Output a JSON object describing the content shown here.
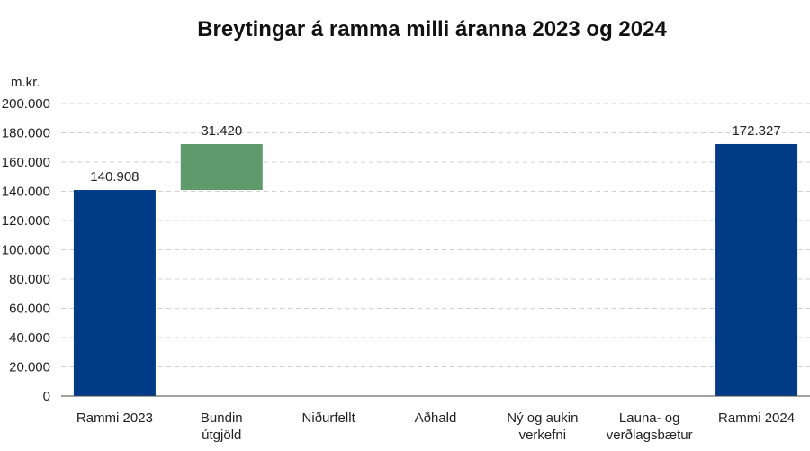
{
  "chart_data": {
    "type": "bar",
    "subtype": "waterfall",
    "title": "Breytingar á ramma milli áranna 2023 og 2024",
    "unit_label": "m.kr.",
    "ylim": [
      0,
      200000
    ],
    "yticks": [
      0,
      20000,
      40000,
      60000,
      80000,
      100000,
      120000,
      140000,
      160000,
      180000,
      200000
    ],
    "ytick_labels": [
      "0",
      "20.000",
      "40.000",
      "60.000",
      "80.000",
      "100.000",
      "120.000",
      "140.000",
      "160.000",
      "180.000",
      "200.000"
    ],
    "grid": true,
    "categories": [
      [
        "Rammi 2023"
      ],
      [
        "Bundin",
        "útgjöld"
      ],
      [
        "Niðurfellt"
      ],
      [
        "Aðhald"
      ],
      [
        "Ný og aukin",
        "verkefni"
      ],
      [
        "Launa- og",
        "verðlagsbætur"
      ],
      [
        "Rammi 2024"
      ]
    ],
    "bars": [
      {
        "kind": "total",
        "start": 0,
        "end": 140908,
        "label": "140.908",
        "color": "#003b87"
      },
      {
        "kind": "delta",
        "start": 140908,
        "end": 172328,
        "label": "31.420",
        "color": "#5e9a6c"
      },
      {
        "kind": "delta",
        "start": 172328,
        "end": 172328,
        "label": "",
        "color": "#5e9a6c"
      },
      {
        "kind": "delta",
        "start": 172328,
        "end": 172328,
        "label": "",
        "color": "#5e9a6c"
      },
      {
        "kind": "delta",
        "start": 172328,
        "end": 172328,
        "label": "",
        "color": "#5e9a6c"
      },
      {
        "kind": "delta",
        "start": 172328,
        "end": 172328,
        "label": "",
        "color": "#5e9a6c"
      },
      {
        "kind": "total",
        "start": 0,
        "end": 172327,
        "label": "172.327",
        "color": "#003b87"
      }
    ]
  }
}
